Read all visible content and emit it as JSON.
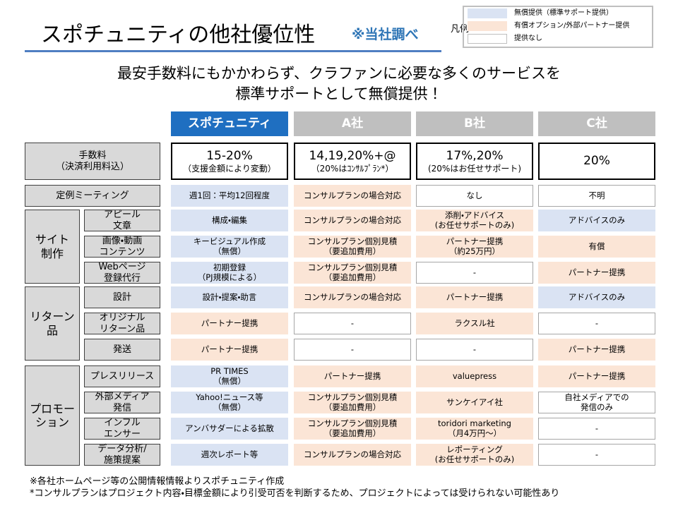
{
  "header": {
    "title": "スポチュニティの他社優位性",
    "note": "※当社調べ"
  },
  "legend": {
    "label": "凡例",
    "items": [
      {
        "text": "無償提供（標準サポート提供）",
        "fill": "free"
      },
      {
        "text": "有償オプション/外部パートナー提供",
        "fill": "paid"
      },
      {
        "text": "提供なし",
        "fill": "none"
      }
    ]
  },
  "fills": {
    "free": "#dae3f3",
    "paid": "#fbe5d6",
    "none": "#ffffff"
  },
  "headline": [
    "最安手数料にもかかわらず、クラファンに必要な多くのサービスを",
    "標準サポートとして無償提供！"
  ],
  "columns": [
    {
      "name": "スポチュニティ",
      "highlight": true
    },
    {
      "name": "A社",
      "highlight": false
    },
    {
      "name": "B社",
      "highlight": false
    },
    {
      "name": "C社",
      "highlight": false
    }
  ],
  "fee_row": {
    "label": [
      "手数料",
      "（決済利用料込）"
    ],
    "cells": [
      {
        "main": "15-20%",
        "sub": "（支援金額により変動）"
      },
      {
        "main": "14,19,20%+@",
        "sub": "（20%はｺﾝｻﾙﾌﾟﾗﾝ*）"
      },
      {
        "main": "17%,20%",
        "sub": "(20%はお任せサポート)"
      },
      {
        "main": "20%"
      }
    ]
  },
  "groups": [
    {
      "rows": [
        {
          "label": [
            "定例ミーティング"
          ],
          "cells": [
            {
              "lines": [
                "週1回：平均12回程度"
              ],
              "fill": "free"
            },
            {
              "lines": [
                "コンサルプランの場合対応"
              ],
              "fill": "paid"
            },
            {
              "lines": [
                "なし"
              ],
              "fill": "none"
            },
            {
              "lines": [
                "不明"
              ],
              "fill": "none"
            }
          ]
        }
      ]
    },
    {
      "label": [
        "サイト",
        "制作"
      ],
      "rows": [
        {
          "label": [
            "アピール",
            "文章"
          ],
          "cells": [
            {
              "lines": [
                "構成・編集"
              ],
              "fill": "free"
            },
            {
              "lines": [
                "コンサルプランの場合対応"
              ],
              "fill": "paid"
            },
            {
              "lines": [
                "添削・アドバイス",
                "(お任せサポートのみ)"
              ],
              "fill": "paid"
            },
            {
              "lines": [
                "アドバイスのみ"
              ],
              "fill": "free"
            }
          ]
        },
        {
          "label": [
            "画像・動画",
            "コンテンツ"
          ],
          "cells": [
            {
              "lines": [
                "キービジュアル作成",
                "（無償）"
              ],
              "fill": "free"
            },
            {
              "lines": [
                "コンサルプラン個別見積",
                "（要追加費用）"
              ],
              "fill": "paid"
            },
            {
              "lines": [
                "パートナー提携",
                "（約25万円）"
              ],
              "fill": "paid"
            },
            {
              "lines": [
                "有償"
              ],
              "fill": "paid"
            }
          ]
        },
        {
          "label": [
            "Webページ",
            "登録代行"
          ],
          "cells": [
            {
              "lines": [
                "初期登録",
                "（PJ規模による）"
              ],
              "fill": "free"
            },
            {
              "lines": [
                "コンサルプラン個別見積",
                "（要追加費用）"
              ],
              "fill": "paid"
            },
            {
              "lines": [
                "-"
              ],
              "fill": "none"
            },
            {
              "lines": [
                "パートナー提携"
              ],
              "fill": "paid"
            }
          ]
        }
      ]
    },
    {
      "label": [
        "リターン",
        "品"
      ],
      "rows": [
        {
          "label": [
            "設計"
          ],
          "cells": [
            {
              "lines": [
                "設計・提案・助言"
              ],
              "fill": "free"
            },
            {
              "lines": [
                "コンサルプランの場合対応"
              ],
              "fill": "paid"
            },
            {
              "lines": [
                "パートナー提携"
              ],
              "fill": "paid"
            },
            {
              "lines": [
                "アドバイスのみ"
              ],
              "fill": "free"
            }
          ]
        },
        {
          "label": [
            "オリジナル",
            "リターン品"
          ],
          "cells": [
            {
              "lines": [
                "パートナー提携"
              ],
              "fill": "paid"
            },
            {
              "lines": [
                "-"
              ],
              "fill": "none"
            },
            {
              "lines": [
                "ラクスル社"
              ],
              "fill": "paid"
            },
            {
              "lines": [
                "-"
              ],
              "fill": "none"
            }
          ]
        },
        {
          "label": [
            "発送"
          ],
          "cells": [
            {
              "lines": [
                "パートナー提携"
              ],
              "fill": "paid"
            },
            {
              "lines": [
                "-"
              ],
              "fill": "none"
            },
            {
              "lines": [
                "-"
              ],
              "fill": "none"
            },
            {
              "lines": [
                "パートナー提携"
              ],
              "fill": "paid"
            }
          ]
        }
      ]
    },
    {
      "label": [
        "プロモー",
        "ション"
      ],
      "rows": [
        {
          "label": [
            "プレスリリース"
          ],
          "cells": [
            {
              "lines": [
                "PR TIMES",
                "（無償）"
              ],
              "fill": "free"
            },
            {
              "lines": [
                "パートナー提携"
              ],
              "fill": "paid"
            },
            {
              "lines": [
                "valuepress"
              ],
              "fill": "paid"
            },
            {
              "lines": [
                "パートナー提携"
              ],
              "fill": "paid"
            }
          ]
        },
        {
          "label": [
            "外部メディア",
            "発信"
          ],
          "cells": [
            {
              "lines": [
                "Yahoo!ニュース等",
                "（無償）"
              ],
              "fill": "free"
            },
            {
              "lines": [
                "コンサルプラン個別見積",
                "（要追加費用）"
              ],
              "fill": "paid"
            },
            {
              "lines": [
                "サンケイアイ社"
              ],
              "fill": "paid"
            },
            {
              "lines": [
                "自社メディアでの",
                "発信のみ"
              ],
              "fill": "none"
            }
          ]
        },
        {
          "label": [
            "インフル",
            "エンサー"
          ],
          "cells": [
            {
              "lines": [
                "アンバサダーによる拡散"
              ],
              "fill": "free"
            },
            {
              "lines": [
                "コンサルプラン個別見積",
                "（要追加費用）"
              ],
              "fill": "paid"
            },
            {
              "lines": [
                "toridori marketing",
                "（月4万円～）"
              ],
              "fill": "paid"
            },
            {
              "lines": [
                "-"
              ],
              "fill": "none"
            }
          ]
        },
        {
          "label": [
            "データ分析/",
            "施策提案"
          ],
          "cells": [
            {
              "lines": [
                "週次レポート等"
              ],
              "fill": "free"
            },
            {
              "lines": [
                "コンサルプランの場合対応"
              ],
              "fill": "paid"
            },
            {
              "lines": [
                "レポーティング",
                "(お任せサポートのみ)"
              ],
              "fill": "paid"
            },
            {
              "lines": [
                "-"
              ],
              "fill": "none"
            }
          ]
        }
      ]
    }
  ],
  "footnotes": [
    "※各社ホームページ等の公開情報情報よりスポチュニティ作成",
    "*コンサルプランはプロジェクト内容・目標金額により引受可否を判断するため、プロジェクトによっては受けられない可能性あり"
  ]
}
